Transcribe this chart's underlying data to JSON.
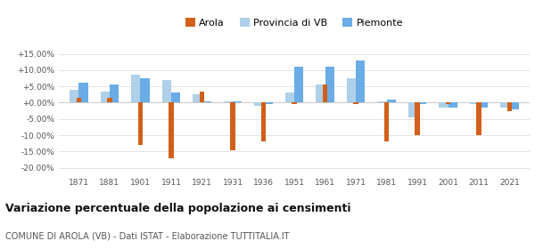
{
  "years": [
    1871,
    1881,
    1901,
    1911,
    1921,
    1931,
    1936,
    1951,
    1961,
    1971,
    1981,
    1991,
    2001,
    2011,
    2021
  ],
  "arola": [
    1.5,
    1.5,
    -13.0,
    -17.0,
    3.5,
    -14.5,
    -12.0,
    -0.5,
    5.5,
    -0.5,
    -12.0,
    -10.0,
    -0.5,
    -10.0,
    -2.5
  ],
  "provincia": [
    4.0,
    3.5,
    8.5,
    7.0,
    2.5,
    0.5,
    -1.0,
    3.0,
    5.5,
    7.5,
    0.5,
    -4.5,
    -1.5,
    -0.5,
    -1.5
  ],
  "piemonte": [
    6.0,
    5.5,
    7.5,
    3.0,
    0.5,
    0.5,
    -0.5,
    11.0,
    11.0,
    13.0,
    1.0,
    -0.5,
    -1.5,
    -1.5,
    -2.0
  ],
  "arola_color": "#d2601a",
  "provincia_color": "#aed0e8",
  "piemonte_color": "#6aace6",
  "title": "Variazione percentuale della popolazione ai censimenti",
  "subtitle": "COMUNE DI AROLA (VB) - Dati ISTAT - Elaborazione TUTTITALIA.IT",
  "ylim": [
    -22,
    17
  ],
  "yticks": [
    -20.0,
    -15.0,
    -10.0,
    -5.0,
    0.0,
    5.0,
    10.0,
    15.0
  ],
  "bar_width": 0.3,
  "bg_color": "#ffffff",
  "grid_color": "#d8d8d8"
}
